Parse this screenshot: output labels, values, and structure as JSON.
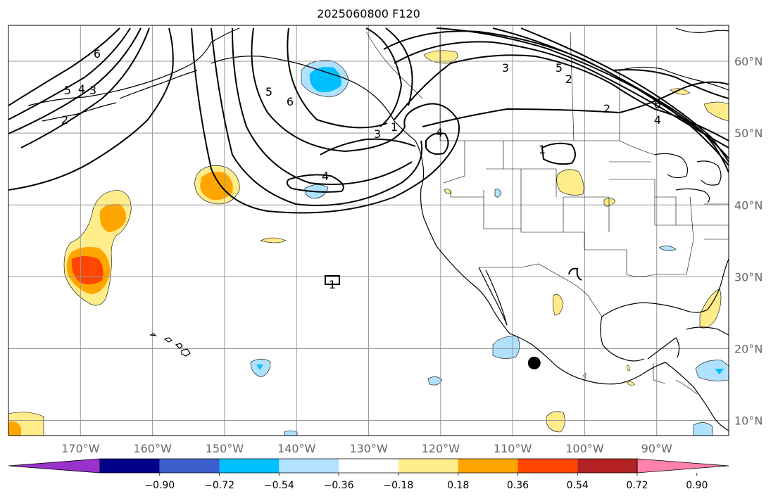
{
  "title": "2025060800 F120",
  "map": {
    "lat_labels": [
      "60°N",
      "50°N",
      "40°N",
      "30°N",
      "20°N",
      "10°N"
    ],
    "lon_labels": [
      "170°W",
      "160°W",
      "150°W",
      "140°W",
      "130°W",
      "120°W",
      "110°W",
      "100°W",
      "90°W"
    ],
    "contour_labels": [
      "6",
      "5",
      "4",
      "3",
      "2",
      "5",
      "6",
      "3",
      "4",
      "1",
      "4",
      "1",
      "3",
      "5",
      "2",
      "2",
      "6",
      "4",
      "1"
    ],
    "marker": {
      "lat": 18.0,
      "lon": -107.0,
      "color": "#000000"
    }
  },
  "colorbar": {
    "tick_labels": [
      "−0.90",
      "−0.72",
      "−0.54",
      "−0.36",
      "−0.18",
      "0.18",
      "0.36",
      "0.54",
      "0.72",
      "0.90"
    ],
    "colors": [
      "#9932CC",
      "#00008B",
      "#3A5FCD",
      "#00BFFF",
      "#B0E2FF",
      "#FFFFFF",
      "#FFEC8B",
      "#FFA500",
      "#FF4500",
      "#B22222",
      "#FF82AB"
    ]
  },
  "shading_colors": {
    "pos1": "#FFEC8B",
    "pos2": "#FFA500",
    "pos3": "#FF4500",
    "neg1": "#B0E2FF",
    "neg2": "#00BFFF"
  }
}
